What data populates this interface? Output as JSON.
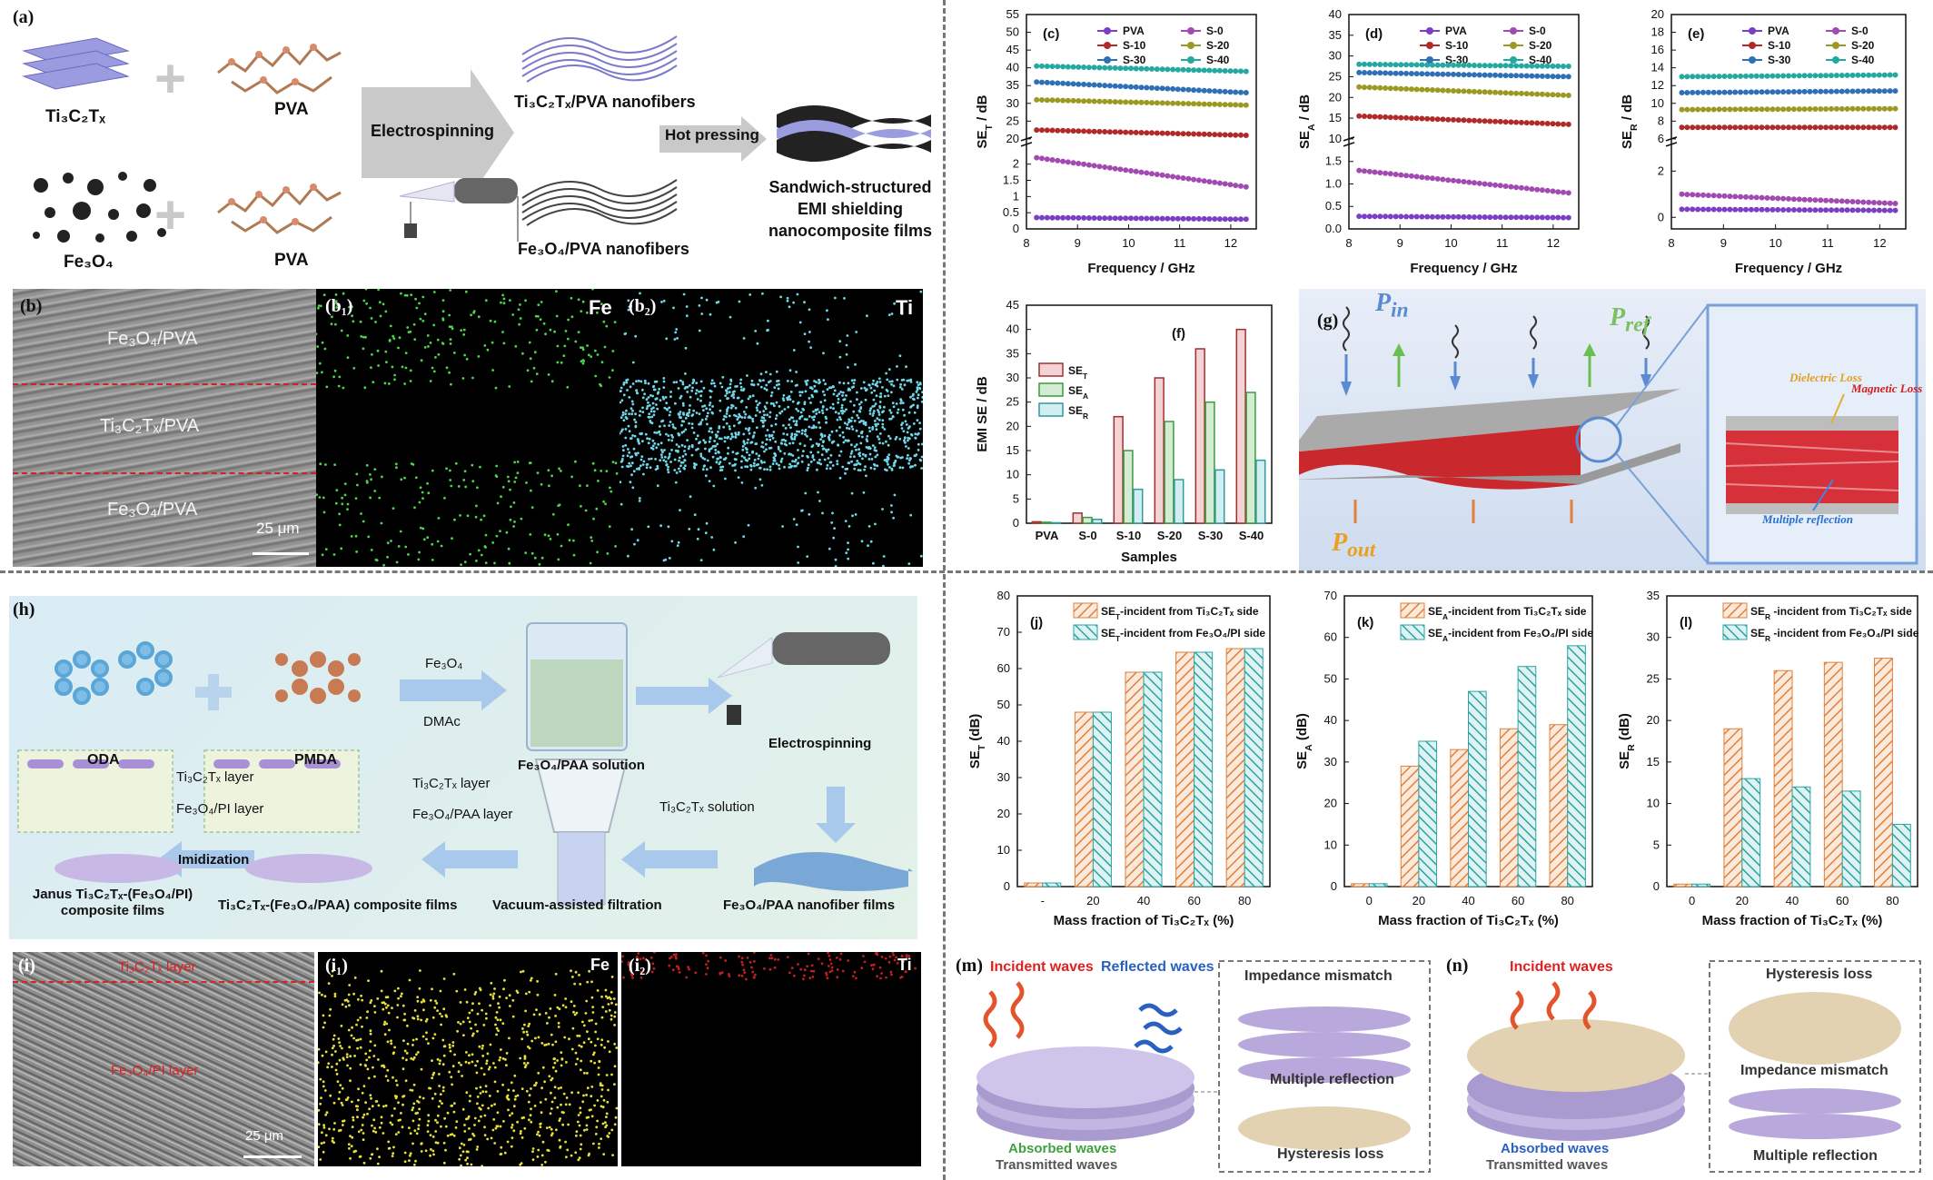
{
  "a": {
    "label": "(a)",
    "mxene": "Ti₃C₂Tₓ",
    "pva1": "PVA",
    "fe3o4": "Fe₃O₄",
    "pva2": "PVA",
    "electrospinning": "Electrospinning",
    "nf1": "Ti₃C₂Tₓ/PVA nanofibers",
    "nf2": "Fe₃O₄/PVA nanofibers",
    "hot": "Hot pressing",
    "final": [
      "Sandwich-structured",
      "EMI shielding",
      "nanocomposite  films"
    ]
  },
  "b": {
    "label": "(b)",
    "top": "Fe₃O₄/PVA",
    "mid": "Ti₃C₂Tₓ/PVA",
    "bot": "Fe₃O₄/PVA",
    "scale": "25 μm",
    "b1_label": "(b₁)",
    "b1_el": "Fe",
    "b2_label": "(b₂)",
    "b2_el": "Ti"
  },
  "freq_series_names": [
    "PVA",
    "S-0",
    "S-10",
    "S-20",
    "S-30",
    "S-40"
  ],
  "colors": {
    "PVA": "#7a3fc4",
    "S-0": "#a14ab1",
    "S-10": "#b02a2a",
    "S-20": "#9a9a22",
    "S-30": "#2f6fb5",
    "S-40": "#23a9a0",
    "hatch_orange": "#e0803a",
    "hatch_teal": "#2aa3a3",
    "bar_red": "#a03030",
    "bar_green": "#3c9a3c",
    "bar_teal": "#2f9aa0"
  },
  "chart_data": [
    {
      "id": "c",
      "type": "line",
      "label": "(c)",
      "xlabel": "Frequency / GHz",
      "ylabel": "SE_T / dB",
      "xlim": [
        8,
        12.5
      ],
      "x_ticks": [
        8,
        9,
        10,
        11,
        12
      ],
      "broken_axis": {
        "lower": [
          0,
          2.5
        ],
        "upper": [
          20,
          55
        ],
        "lower_ticks": [
          0,
          0.5,
          1.0,
          1.5,
          2.0
        ],
        "upper_ticks": [
          20,
          25,
          30,
          35,
          40,
          45,
          50,
          55
        ]
      },
      "series": [
        {
          "name": "PVA",
          "start": 0.35,
          "end": 0.3
        },
        {
          "name": "S-0",
          "start": 2.2,
          "end": 1.3
        },
        {
          "name": "S-10",
          "start": 22.5,
          "end": 21
        },
        {
          "name": "S-20",
          "start": 31,
          "end": 29.5
        },
        {
          "name": "S-30",
          "start": 36,
          "end": 33
        },
        {
          "name": "S-40",
          "start": 40.5,
          "end": 39
        }
      ]
    },
    {
      "id": "d",
      "type": "line",
      "label": "(d)",
      "xlabel": "Frequency / GHz",
      "ylabel": "SE_A / dB",
      "xlim": [
        8,
        12.5
      ],
      "x_ticks": [
        8,
        9,
        10,
        11,
        12
      ],
      "broken_axis": {
        "lower": [
          0,
          1.8
        ],
        "upper": [
          10,
          40
        ],
        "lower_ticks": [
          0.0,
          0.5,
          1.0,
          1.5
        ],
        "upper_ticks": [
          10,
          15,
          20,
          25,
          30,
          35,
          40
        ]
      },
      "series": [
        {
          "name": "PVA",
          "start": 0.28,
          "end": 0.25
        },
        {
          "name": "S-0",
          "start": 1.3,
          "end": 0.8
        },
        {
          "name": "S-10",
          "start": 15.5,
          "end": 13.5
        },
        {
          "name": "S-20",
          "start": 22.5,
          "end": 20.5
        },
        {
          "name": "S-30",
          "start": 26,
          "end": 25
        },
        {
          "name": "S-40",
          "start": 28,
          "end": 27.5
        }
      ]
    },
    {
      "id": "e",
      "type": "line",
      "label": "(e)",
      "xlabel": "Frequency / GHz",
      "ylabel": "SE_R / dB",
      "xlim": [
        8,
        12.5
      ],
      "x_ticks": [
        8,
        9,
        10,
        11,
        12
      ],
      "broken_axis": {
        "lower": [
          -0.5,
          3
        ],
        "upper": [
          6,
          20
        ],
        "lower_ticks": [
          0,
          2
        ],
        "upper_ticks": [
          6,
          8,
          10,
          12,
          14,
          16,
          18,
          20
        ]
      },
      "series": [
        {
          "name": "PVA",
          "start": 0.35,
          "end": 0.3
        },
        {
          "name": "S-0",
          "start": 1.0,
          "end": 0.6
        },
        {
          "name": "S-10",
          "start": 7.3,
          "end": 7.3
        },
        {
          "name": "S-20",
          "start": 9.3,
          "end": 9.4
        },
        {
          "name": "S-30",
          "start": 11.2,
          "end": 11.4
        },
        {
          "name": "S-40",
          "start": 13.0,
          "end": 13.2
        }
      ]
    },
    {
      "id": "f",
      "type": "bar",
      "label": "(f)",
      "xlabel": "Samples",
      "ylabel": "EMI SE / dB",
      "ylim": [
        0,
        45
      ],
      "y_ticks": [
        0,
        5,
        10,
        15,
        20,
        25,
        30,
        35,
        40,
        45
      ],
      "categories": [
        "PVA",
        "S-0",
        "S-10",
        "S-20",
        "S-30",
        "S-40"
      ],
      "series": [
        {
          "name": "SE_T",
          "values": [
            0.3,
            2.1,
            22,
            30,
            36,
            40
          ]
        },
        {
          "name": "SE_A",
          "values": [
            0.2,
            1.2,
            15,
            21,
            25,
            27
          ]
        },
        {
          "name": "SE_R",
          "values": [
            0.1,
            0.8,
            7,
            9,
            11,
            13
          ]
        }
      ]
    },
    {
      "id": "j",
      "type": "bar",
      "label": "(j)",
      "ylabel": "SE_T (dB)",
      "xlabel": "Mass fraction of Ti₃C₂Tₓ (%)",
      "ylim": [
        0,
        80
      ],
      "y_ticks": [
        0,
        10,
        20,
        30,
        40,
        50,
        60,
        70,
        80
      ],
      "categories": [
        "-",
        "20",
        "40",
        "60",
        "80"
      ],
      "series": [
        {
          "name": "SE_T-incident from Ti₃C₂Tₓ side",
          "values": [
            1,
            48,
            59,
            64.5,
            65.5
          ]
        },
        {
          "name": "SE_T-incident from Fe₃O₄/PI side",
          "values": [
            1,
            48,
            59,
            64.5,
            65.5
          ]
        }
      ]
    },
    {
      "id": "k",
      "type": "bar",
      "label": "(k)",
      "ylabel": "SE_A (dB)",
      "xlabel": "Mass fraction of Ti₃C₂Tₓ (%)",
      "ylim": [
        0,
        70
      ],
      "y_ticks": [
        0,
        10,
        20,
        30,
        40,
        50,
        60,
        70
      ],
      "categories": [
        "0",
        "20",
        "40",
        "60",
        "80"
      ],
      "series": [
        {
          "name": "SE_A-incident from Ti₃C₂Tₓ side",
          "values": [
            0.7,
            29,
            33,
            38,
            39
          ]
        },
        {
          "name": "SE_A-incident from Fe₃O₄/PI side",
          "values": [
            0.7,
            35,
            47,
            53,
            58
          ]
        }
      ]
    },
    {
      "id": "l",
      "type": "bar",
      "label": "(l)",
      "ylabel": "SE_R (dB)",
      "xlabel": "Mass fraction of Ti₃C₂Tₓ (%)",
      "ylim": [
        0,
        35
      ],
      "y_ticks": [
        0,
        5,
        10,
        15,
        20,
        25,
        30,
        35
      ],
      "categories": [
        "0",
        "20",
        "40",
        "60",
        "80"
      ],
      "series": [
        {
          "name": "SE_R -incident from Ti₃C₂Tₓ side",
          "values": [
            0.3,
            19,
            26,
            27,
            27.5
          ]
        },
        {
          "name": "SE_R -incident from Fe₃O₄/PI side",
          "values": [
            0.3,
            13,
            12,
            11.5,
            7.5
          ]
        }
      ]
    }
  ],
  "g": {
    "label": "(g)",
    "p_in": "P",
    "p_in_sub": "in",
    "p_ref": "P",
    "p_ref_sub": "ref",
    "p_out": "P",
    "p_out_sub": "out",
    "dielectric": "Dielectric Loss",
    "magnetic": "Magnetic Loss",
    "multiple": "Multiple reflection"
  },
  "h": {
    "label": "(h)",
    "oda": "ODA",
    "pmda": "PMDA",
    "fe3o4": "Fe₃O₄",
    "dmac": "DMAc",
    "paa_solution": "Fe₃O₄/PAA solution",
    "electrospinning": "Electrospinning",
    "ti_layer1": "Ti₃C₂Tₓ layer",
    "fe_pi_layer": "Fe₃O₄/PI layer",
    "ti_layer2": "Ti₃C₂Tₓ layer",
    "fe_paa_layer": "Fe₃O₄/PAA layer",
    "ti_solution": "Ti₃C₂Tₓ solution",
    "imidization": "Imidization",
    "janus": [
      "Janus Ti₃C₂Tₓ-(Fe₃O₄/PI)",
      "composite films"
    ],
    "composite": "Ti₃C₂Tₓ-(Fe₃O₄/PAA) composite films",
    "vacuum": "Vacuum-assisted filtration",
    "nanofiber": "Fe₃O₄/PAA nanofiber films"
  },
  "i": {
    "label": "(i)",
    "ti_layer": "Ti₃C₂Tₓ layer",
    "fe_layer": "Fe₃O₄/PI layer",
    "scale": "25 μm",
    "i1_label": "(i₁)",
    "i1_el": "Fe",
    "i2_label": "(i₂)",
    "i2_el": "Ti"
  },
  "m": {
    "label": "(m)",
    "incident": "Incident waves",
    "reflected": "Reflected waves",
    "absorbed": "Absorbed waves",
    "transmitted": "Transmitted waves",
    "impedance": "Impedance mismatch",
    "multiple": "Multiple reflection",
    "hysteresis": "Hysteresis loss"
  },
  "n": {
    "label": "(n)",
    "incident": "Incident waves",
    "absorbed": "Absorbed waves",
    "transmitted": "Transmitted waves",
    "hysteresis": "Hysteresis loss",
    "impedance": "Impedance mismatch",
    "multiple": "Multiple reflection"
  }
}
